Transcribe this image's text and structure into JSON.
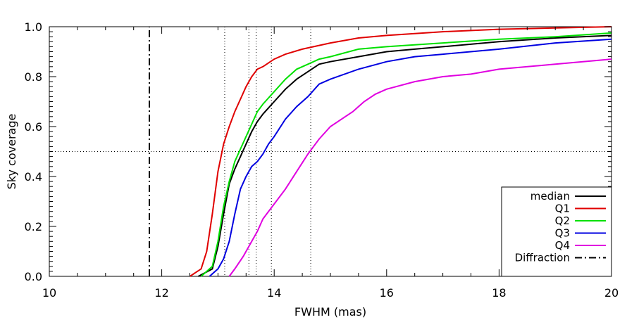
{
  "chart_data": {
    "type": "line",
    "xlabel": "FWHM (mas)",
    "ylabel": "Sky coverage",
    "xlim": [
      10,
      20
    ],
    "ylim": [
      0,
      1.0
    ],
    "x_ticks": [
      "10",
      "12",
      "14",
      "16",
      "18",
      "20"
    ],
    "y_ticks": [
      "0.0",
      "0.2",
      "0.4",
      "0.6",
      "0.8",
      "1.0"
    ],
    "grid": false,
    "legend_position": "bottom-right",
    "reference_lines": {
      "horizontal": [
        0.5
      ],
      "vertical": [
        13.12,
        13.55,
        13.68,
        13.95,
        14.65
      ]
    },
    "series": [
      {
        "name": "median",
        "color": "#000000",
        "dash": "solid",
        "x": [
          12.65,
          12.9,
          13.0,
          13.1,
          13.2,
          13.3,
          13.4,
          13.5,
          13.6,
          13.7,
          13.8,
          14.0,
          14.2,
          14.4,
          14.6,
          14.8,
          15.0,
          15.5,
          16.0,
          16.5,
          17.0,
          18.0,
          19.0,
          20.0
        ],
        "y": [
          0.0,
          0.03,
          0.12,
          0.25,
          0.37,
          0.43,
          0.48,
          0.53,
          0.58,
          0.62,
          0.65,
          0.7,
          0.75,
          0.79,
          0.82,
          0.85,
          0.86,
          0.88,
          0.9,
          0.91,
          0.92,
          0.94,
          0.955,
          0.965
        ]
      },
      {
        "name": "Q1",
        "color": "#e00000",
        "dash": "solid",
        "x": [
          12.5,
          12.7,
          12.8,
          12.9,
          13.0,
          13.1,
          13.2,
          13.3,
          13.4,
          13.5,
          13.6,
          13.7,
          13.8,
          14.0,
          14.2,
          14.5,
          15.0,
          15.5,
          16.0,
          17.0,
          18.0,
          19.0,
          20.0
        ],
        "y": [
          0.0,
          0.03,
          0.1,
          0.25,
          0.42,
          0.53,
          0.6,
          0.66,
          0.71,
          0.76,
          0.8,
          0.83,
          0.84,
          0.87,
          0.89,
          0.91,
          0.935,
          0.955,
          0.965,
          0.98,
          0.99,
          0.995,
          1.0
        ]
      },
      {
        "name": "Q2",
        "color": "#00e000",
        "dash": "solid",
        "x": [
          12.7,
          12.9,
          13.0,
          13.1,
          13.2,
          13.3,
          13.4,
          13.5,
          13.6,
          13.7,
          13.8,
          14.0,
          14.2,
          14.4,
          14.6,
          14.8,
          15.0,
          15.5,
          16.0,
          17.0,
          18.0,
          19.0,
          20.0
        ],
        "y": [
          0.0,
          0.04,
          0.14,
          0.28,
          0.38,
          0.46,
          0.51,
          0.56,
          0.61,
          0.66,
          0.69,
          0.74,
          0.79,
          0.83,
          0.85,
          0.87,
          0.88,
          0.91,
          0.92,
          0.935,
          0.95,
          0.96,
          0.975
        ]
      },
      {
        "name": "Q3",
        "color": "#0000e0",
        "dash": "solid",
        "x": [
          12.85,
          13.0,
          13.1,
          13.2,
          13.3,
          13.4,
          13.5,
          13.6,
          13.7,
          13.8,
          13.9,
          14.0,
          14.2,
          14.4,
          14.6,
          14.8,
          15.0,
          15.5,
          16.0,
          16.5,
          17.0,
          18.0,
          19.0,
          20.0
        ],
        "y": [
          0.0,
          0.03,
          0.07,
          0.14,
          0.25,
          0.35,
          0.4,
          0.44,
          0.46,
          0.49,
          0.53,
          0.56,
          0.63,
          0.68,
          0.72,
          0.77,
          0.79,
          0.83,
          0.86,
          0.88,
          0.89,
          0.91,
          0.935,
          0.95
        ]
      },
      {
        "name": "Q4",
        "color": "#e000e0",
        "dash": "solid",
        "x": [
          13.2,
          13.3,
          13.45,
          13.6,
          13.7,
          13.8,
          14.0,
          14.2,
          14.4,
          14.6,
          14.8,
          15.0,
          15.2,
          15.4,
          15.6,
          15.8,
          16.0,
          16.5,
          17.0,
          17.5,
          18.0,
          19.0,
          20.0
        ],
        "y": [
          0.0,
          0.03,
          0.08,
          0.14,
          0.18,
          0.23,
          0.29,
          0.35,
          0.42,
          0.49,
          0.55,
          0.6,
          0.63,
          0.66,
          0.7,
          0.73,
          0.75,
          0.78,
          0.8,
          0.81,
          0.83,
          0.85,
          0.87
        ]
      },
      {
        "name": "Diffraction",
        "color": "#000000",
        "dash": "dashdot",
        "x": [
          11.78,
          11.78
        ],
        "y": [
          0.0,
          1.0
        ]
      }
    ]
  }
}
